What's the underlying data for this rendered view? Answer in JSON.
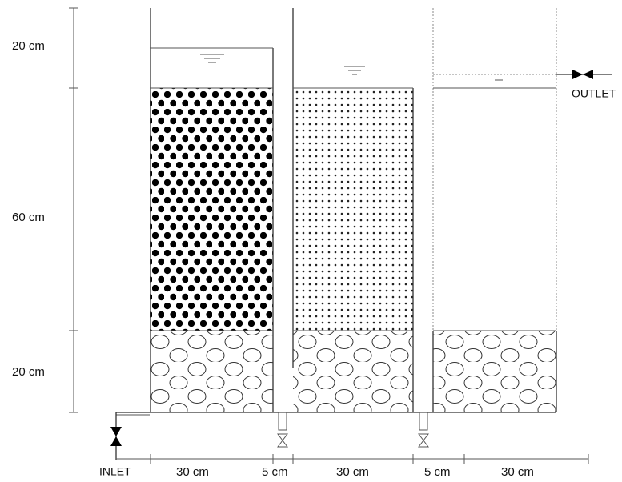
{
  "vertical_dimensions": [
    "20 cm",
    "60 cm",
    "20 cm"
  ],
  "horizontal_dimensions": [
    "30 cm",
    "5 cm",
    "30 cm",
    "5 cm",
    "30 cm"
  ],
  "inlet_label": "INLET",
  "outlet_label": "OUTLET"
}
